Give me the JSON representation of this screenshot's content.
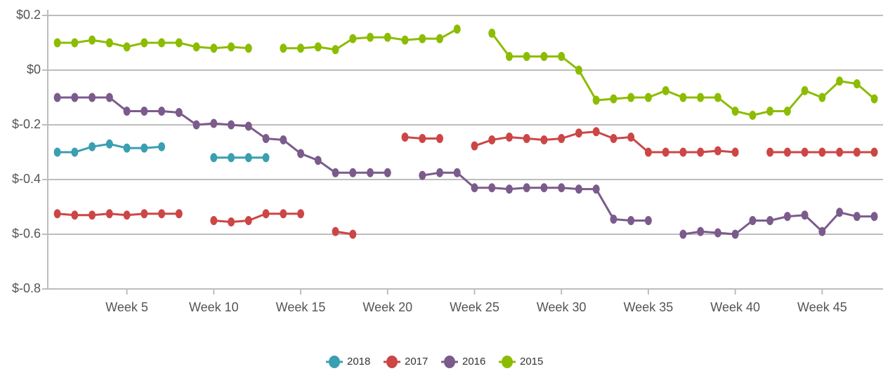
{
  "chart_data": {
    "type": "line",
    "x": [
      1,
      2,
      3,
      4,
      5,
      6,
      7,
      8,
      9,
      10,
      11,
      12,
      13,
      14,
      15,
      16,
      17,
      18,
      19,
      20,
      21,
      22,
      23,
      24,
      25,
      26,
      27,
      28,
      29,
      30,
      31,
      32,
      33,
      34,
      35,
      36,
      37,
      38,
      39,
      40,
      41,
      42,
      43,
      44,
      45,
      46,
      47,
      48
    ],
    "xlim": [
      0.45,
      48.5
    ],
    "xticks": [
      {
        "value": 5,
        "label": "Week 5"
      },
      {
        "value": 10,
        "label": "Week 10"
      },
      {
        "value": 15,
        "label": "Week 15"
      },
      {
        "value": 20,
        "label": "Week 20"
      },
      {
        "value": 25,
        "label": "Week 25"
      },
      {
        "value": 30,
        "label": "Week 30"
      },
      {
        "value": 35,
        "label": "Week 35"
      },
      {
        "value": 40,
        "label": "Week 40"
      },
      {
        "value": 45,
        "label": "Week 45"
      }
    ],
    "ylim": [
      -0.8,
      0.2
    ],
    "yticks": [
      {
        "value": -0.8,
        "label": "$-0.8"
      },
      {
        "value": -0.6,
        "label": "$-0.6"
      },
      {
        "value": -0.4,
        "label": "$-0.4"
      },
      {
        "value": -0.2,
        "label": "$-0.2"
      },
      {
        "value": 0,
        "label": "$0"
      },
      {
        "value": 0.2,
        "label": "$0.2"
      }
    ],
    "grid": true,
    "legend": "bottom",
    "series": [
      {
        "name": "2018",
        "color": "#3a9fb1",
        "values": [
          -0.3,
          -0.3,
          -0.28,
          -0.27,
          -0.285,
          -0.285,
          -0.28,
          null,
          null,
          -0.32,
          -0.32,
          -0.32,
          -0.32,
          null,
          null,
          null,
          null,
          null,
          null,
          null,
          null,
          null,
          null,
          null,
          null,
          null,
          null,
          null,
          null,
          null,
          null,
          null,
          null,
          null,
          null,
          null,
          null,
          null,
          null,
          null,
          null,
          null,
          null,
          null,
          null,
          null,
          null,
          null
        ]
      },
      {
        "name": "2017",
        "color": "#cc4646",
        "values": [
          -0.525,
          -0.53,
          -0.53,
          -0.525,
          -0.53,
          -0.525,
          -0.525,
          -0.525,
          null,
          -0.55,
          -0.555,
          -0.55,
          -0.525,
          -0.525,
          -0.525,
          null,
          -0.59,
          -0.6,
          null,
          null,
          -0.245,
          -0.25,
          -0.25,
          null,
          -0.277,
          -0.255,
          -0.245,
          -0.25,
          -0.255,
          -0.25,
          -0.23,
          -0.225,
          -0.25,
          -0.245,
          -0.3,
          -0.3,
          -0.3,
          -0.3,
          -0.295,
          -0.3,
          null,
          -0.3,
          -0.3,
          -0.3,
          -0.3,
          -0.3,
          -0.3,
          -0.3
        ]
      },
      {
        "name": "2016",
        "color": "#7b5b8c",
        "values": [
          -0.1,
          -0.1,
          -0.1,
          -0.1,
          -0.15,
          -0.15,
          -0.15,
          -0.155,
          -0.2,
          -0.195,
          -0.2,
          -0.205,
          -0.25,
          -0.255,
          -0.305,
          -0.33,
          -0.375,
          -0.375,
          -0.375,
          -0.375,
          null,
          -0.385,
          -0.375,
          -0.375,
          -0.43,
          -0.43,
          -0.435,
          -0.43,
          -0.43,
          -0.43,
          -0.435,
          -0.435,
          -0.545,
          -0.55,
          -0.55,
          null,
          -0.6,
          -0.59,
          -0.595,
          -0.6,
          -0.55,
          -0.55,
          -0.535,
          -0.53,
          -0.59,
          -0.52,
          -0.535,
          -0.535
        ]
      },
      {
        "name": "2015",
        "color": "#8cbc00",
        "values": [
          0.1,
          0.1,
          0.11,
          0.1,
          0.085,
          0.1,
          0.1,
          0.1,
          0.085,
          0.08,
          0.085,
          0.08,
          null,
          0.08,
          0.08,
          0.085,
          0.075,
          0.115,
          0.12,
          0.12,
          0.11,
          0.115,
          0.115,
          0.15,
          null,
          0.135,
          0.05,
          0.05,
          0.05,
          0.05,
          0,
          -0.11,
          -0.105,
          -0.1,
          -0.1,
          -0.075,
          -0.1,
          -0.1,
          -0.1,
          -0.15,
          -0.165,
          -0.15,
          -0.15,
          -0.075,
          -0.1,
          -0.04,
          -0.05,
          -0.105
        ]
      }
    ]
  }
}
